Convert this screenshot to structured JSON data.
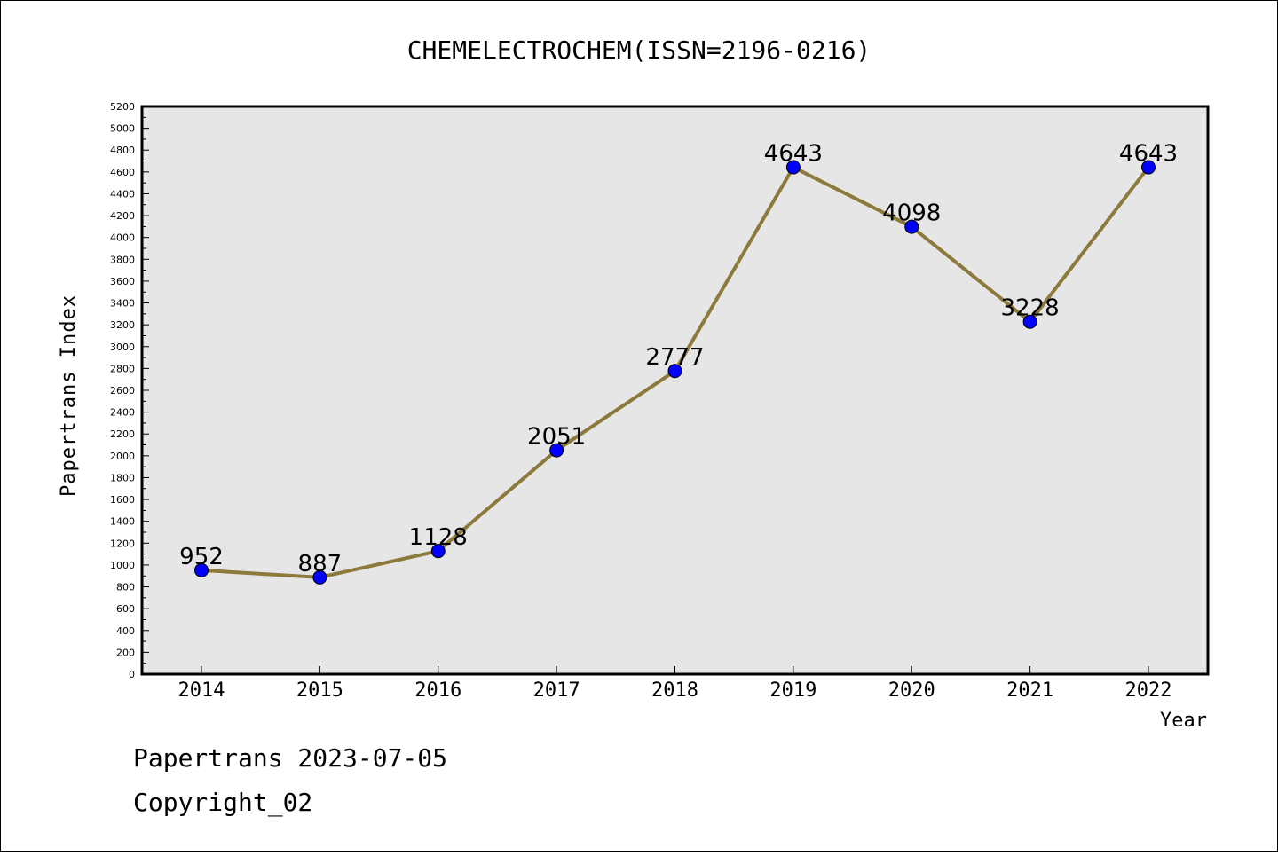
{
  "chart_data": {
    "type": "line",
    "title": "CHEMELECTROCHEM(ISSN=2196-0216)",
    "xlabel": "Year",
    "ylabel": "Papertrans Index",
    "categories": [
      "2014",
      "2015",
      "2016",
      "2017",
      "2018",
      "2019",
      "2020",
      "2021",
      "2022"
    ],
    "values": [
      952,
      887,
      1128,
      2051,
      2777,
      4643,
      4098,
      3228,
      4643
    ],
    "data_labels": [
      "952",
      "887",
      "1128",
      "2051",
      "2777",
      "4643",
      "4098",
      "3228",
      "4643"
    ],
    "ylim": [
      0,
      5200
    ],
    "ytick_step": 200,
    "grid": false,
    "legend": "none",
    "colors": {
      "line": "#8c7a3c",
      "marker": "#0000ff",
      "plot_background": "#e6e6e6"
    }
  },
  "footer": {
    "line1": "Papertrans 2023-07-05",
    "line2": "Copyright_02"
  }
}
